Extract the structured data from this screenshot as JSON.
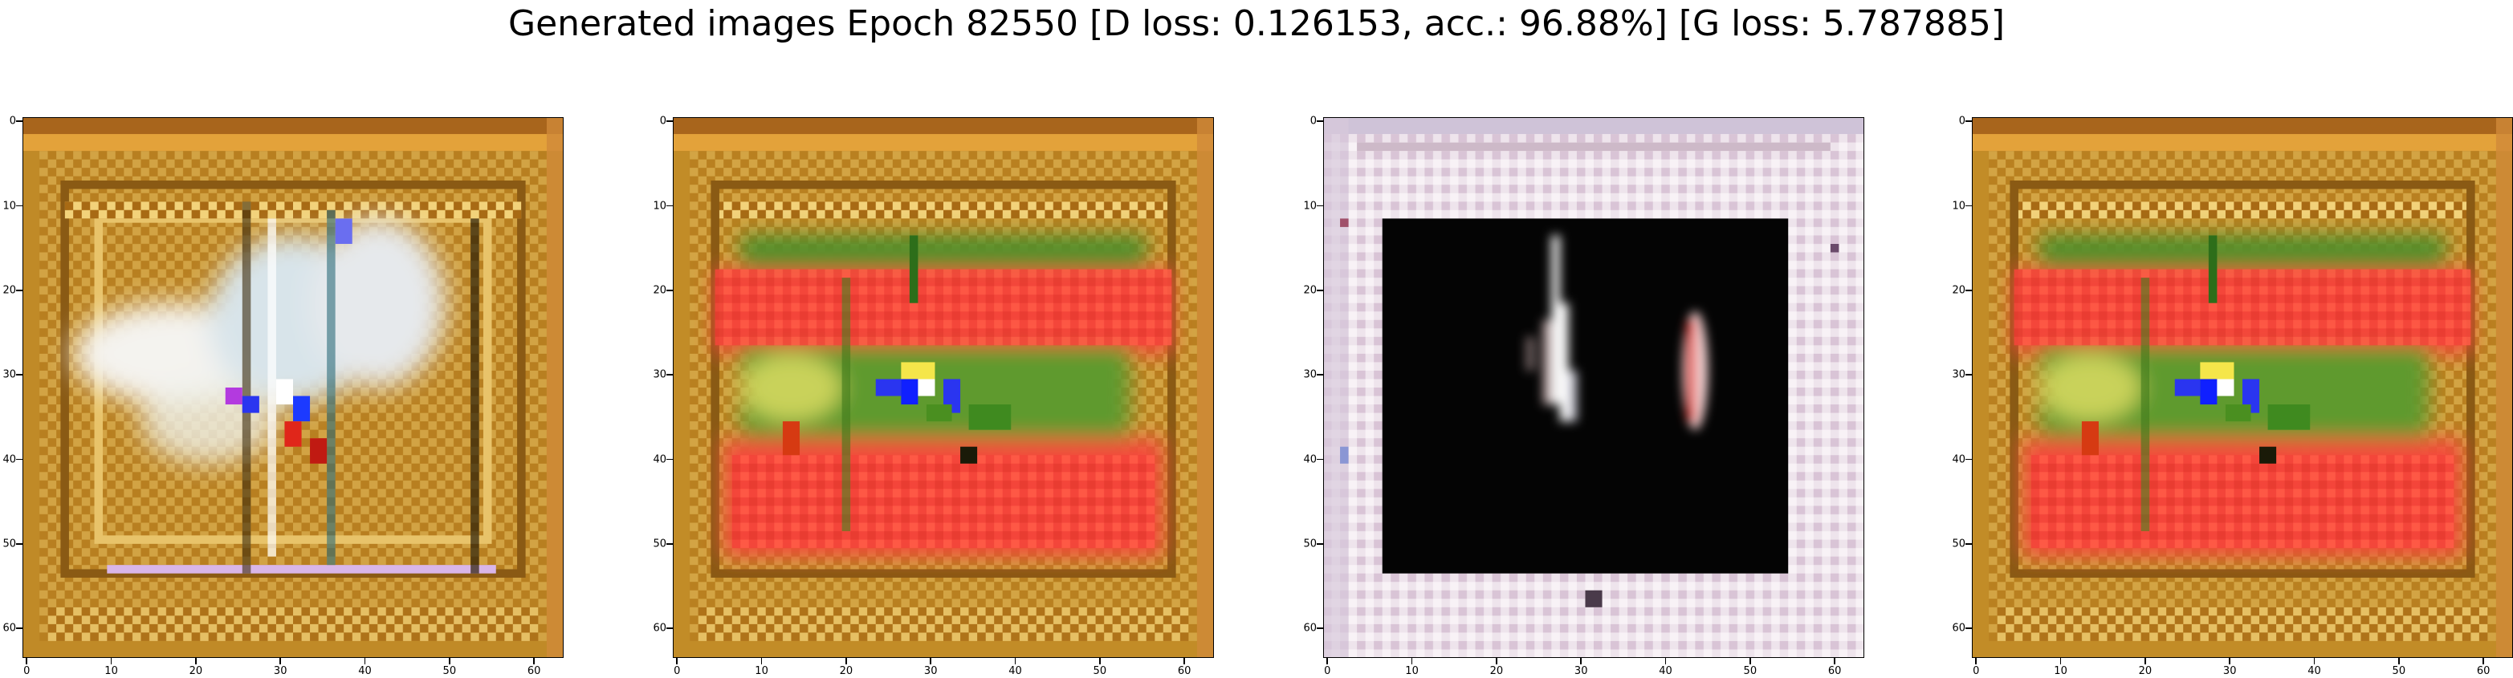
{
  "title": "Generated images Epoch 82550 [D loss: 0.126153, acc.: 96.88%] [G loss: 5.787885]",
  "chart_data": [
    {
      "type": "heatmap",
      "panel": 1,
      "xlim": [
        -0.5,
        63.5
      ],
      "ylim": [
        63.5,
        -0.5
      ],
      "xticks": [
        0,
        10,
        20,
        30,
        40,
        50,
        60
      ],
      "yticks": [
        0,
        10,
        20,
        30,
        40,
        50,
        60
      ],
      "description": "64x64 generated RGB image: ochre/golden nested frames with a pale white-blue cloudy centre and a small multicolour blob near (31,34)"
    },
    {
      "type": "heatmap",
      "panel": 2,
      "xlim": [
        -0.5,
        63.5
      ],
      "ylim": [
        63.5,
        -0.5
      ],
      "xticks": [
        0,
        10,
        20,
        30,
        40,
        50,
        60
      ],
      "yticks": [
        0,
        10,
        20,
        30,
        40,
        50,
        60
      ],
      "description": "64x64 generated RGB image: ochre/golden frame, large red rectangular regions top and bottom, green band and blue-yellow blob in the middle"
    },
    {
      "type": "heatmap",
      "panel": 3,
      "xlim": [
        -0.5,
        63.5
      ],
      "ylim": [
        63.5,
        -0.5
      ],
      "xticks": [
        0,
        10,
        20,
        30,
        40,
        50,
        60
      ],
      "yticks": [
        0,
        10,
        20,
        30,
        40,
        50,
        60
      ],
      "description": "64x64 generated RGB image: pale lavender/white noisy border around a black rectangle containing a white vertical streak and a red-white oval"
    },
    {
      "type": "heatmap",
      "panel": 4,
      "xlim": [
        -0.5,
        63.5
      ],
      "ylim": [
        63.5,
        -0.5
      ],
      "xticks": [
        0,
        10,
        20,
        30,
        40,
        50,
        60
      ],
      "yticks": [
        0,
        10,
        20,
        30,
        40,
        50,
        60
      ],
      "description": "64x64 generated RGB image identical in style to panel 2: ochre frame, red regions, green band, blue-yellow central blob"
    }
  ],
  "palette": {
    "ochre": "#c9932a",
    "gold": "#dcae4a",
    "brown": "#7a4a12",
    "red": "#f5473a",
    "green": "#3f8a1f",
    "blue": "#2a35f0",
    "white": "#f1ece9",
    "lavender": "#e8d9e6",
    "black": "#050505"
  }
}
